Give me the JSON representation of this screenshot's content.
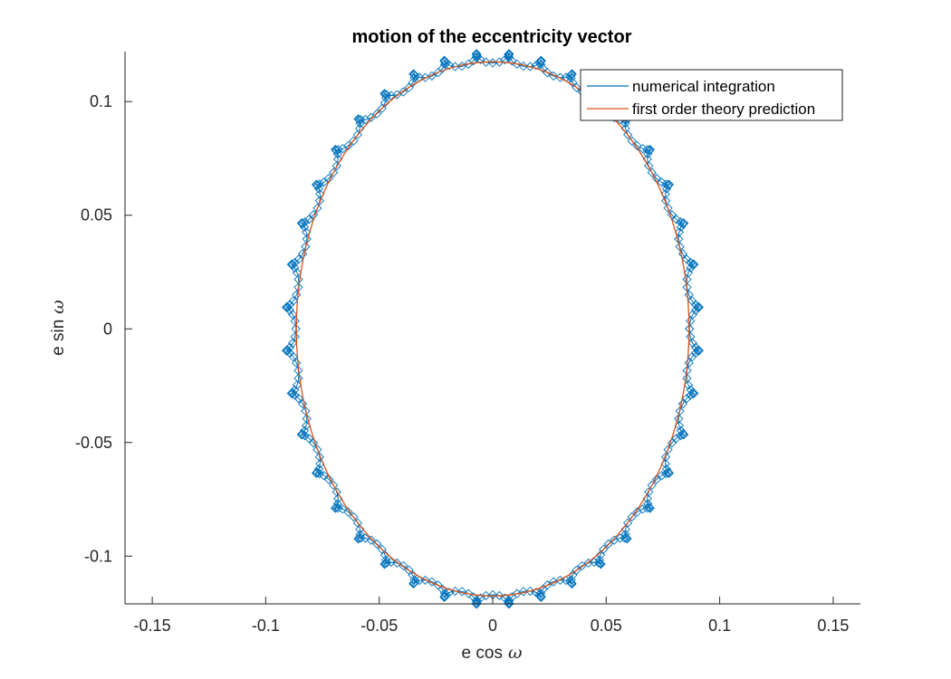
{
  "chart_data": {
    "type": "line",
    "title": "motion of the eccentricity vector",
    "xlabel": "e cos",
    "ylabel": "e sin",
    "axis_symbol": "ω",
    "xlim": [
      -0.162,
      0.162
    ],
    "ylim": [
      -0.121,
      0.122
    ],
    "xticks": [
      -0.15,
      -0.1,
      -0.05,
      0,
      0.05,
      0.1,
      0.15
    ],
    "xtick_labels": [
      "-0.15",
      "-0.1",
      "-0.05",
      "0",
      "0.05",
      "0.1",
      "0.15"
    ],
    "yticks": [
      -0.1,
      -0.05,
      0,
      0.05,
      0.1
    ],
    "ytick_labels": [
      "-0.1",
      "-0.05",
      "0",
      "0.05",
      "0.1"
    ],
    "grid": false,
    "legend_position": "top-right",
    "series": [
      {
        "name": "numerical integration",
        "color": "#0072BD",
        "style": "line with diamond markers",
        "orbit_center": [
          0.0,
          0.0
        ],
        "orbit_x_semi_axis": 0.0867,
        "orbit_y_semi_axis": 0.117,
        "wobble_amplitude": 0.0045,
        "loop_count": 40
      },
      {
        "name": "first order theory prediction",
        "color": "#D95319",
        "style": "line",
        "ellipse_center": [
          0.0,
          0.0
        ],
        "ellipse_x_semi_axis": 0.0865,
        "ellipse_y_semi_axis": 0.1175
      }
    ]
  }
}
